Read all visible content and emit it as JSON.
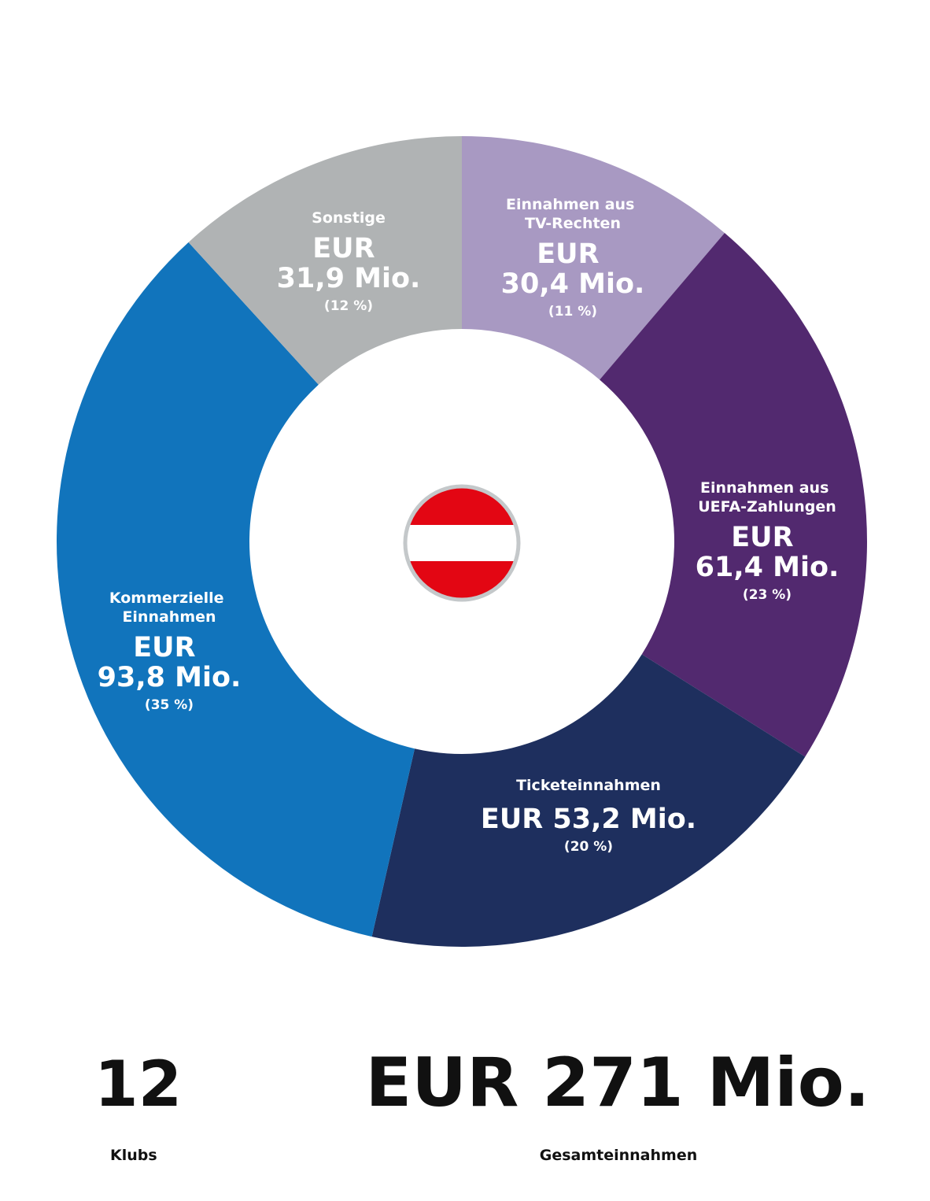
{
  "chart_data": {
    "type": "donut",
    "categories": [
      "Einnahmen aus TV-Rechten",
      "Einnahmen aus UEFA-Zahlungen",
      "Ticketeinnahmen",
      "Kommerzielle Einnahmen",
      "Sonstige"
    ],
    "values": [
      30.4,
      61.4,
      53.2,
      93.8,
      31.9
    ],
    "value_labels": [
      "EUR 30,4 Mio.",
      "EUR 61,4 Mio.",
      "EUR 53,2 Mio.",
      "EUR 93,8 Mio.",
      "EUR 31,9 Mio."
    ],
    "percentage_labels": [
      "(11 %)",
      "(23 %)",
      "(20 %)",
      "(35 %)",
      "(12 %)"
    ],
    "colors": [
      "#a899c2",
      "#52296f",
      "#1e2f5e",
      "#1174bc",
      "#b0b3b4"
    ],
    "stats": [
      {
        "value": "12",
        "label": "Klubs"
      },
      {
        "value": "EUR 271 Mio.",
        "label": "Gesamteinnahmen"
      }
    ]
  }
}
